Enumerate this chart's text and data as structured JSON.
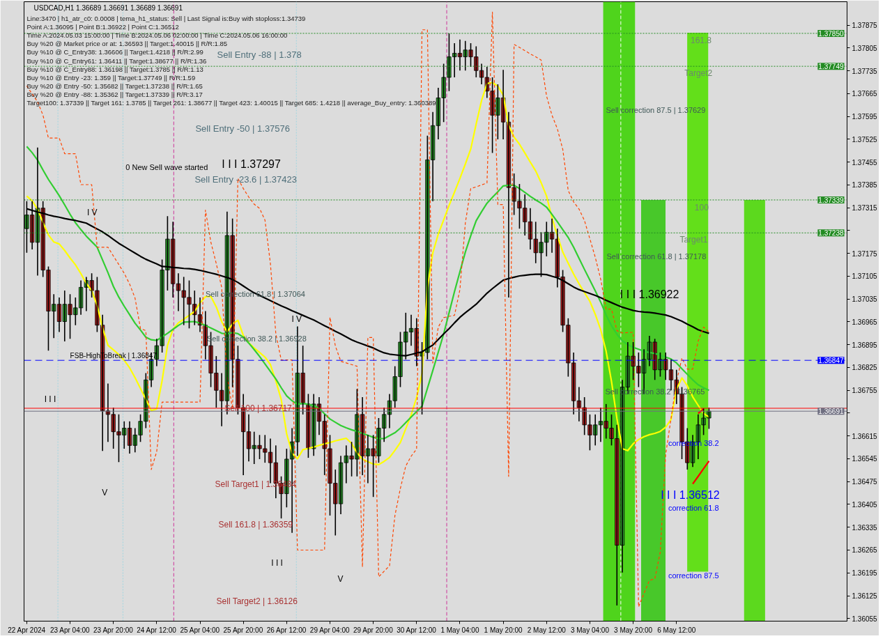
{
  "chart_data": {
    "type": "candlestick",
    "title": "USDCAD,H1  1.36689 1.36691 1.36689 1.36691",
    "annotations": [
      "Line:3470 | h1_atr_c0: 0.0008 | tema_h1_status: Sell | Last Signal is:Buy with stoploss:1.34739",
      "Point A:1.36095 | Point B:1.36922 | Point C:1.36512",
      "Time A:2024.05.03 15:00:00 | Time B:2024.05.06 02:00:00 | Time C:2024.05.06 16:00:00",
      "Buy %20 @ Market price or at: 1.36593 || Target:1.40015 || R/R:1.85",
      "Buy %10 @ C_Entry38: 1.36606 || Target:1.4218 || R/R:2.99",
      "Buy %10 @ C_Entry61: 1.36411 || Target:1.38677 || R/R:1.36",
      "Buy %10 @ C_Entry88: 1.36198 || Target:1.3785 || R/R:1.13",
      "Buy %10 @ Entry -23: 1.359 || Target:1.37749 || R/R:1.59",
      "Buy %20 @ Entry -50: 1.35682 || Target:1.37238 || R/R:1.65",
      "Buy %20 @ Entry -88: 1.35362 || Target:1.37339 || R/R:3.17",
      "Target100: 1.37339 || Target 161: 1.3785 || Target 261: 1.38677 || Target 423: 1.40015 || Target 685: 1.4218 || average_Buy_entry: 1.360389",
      "Sell Entry -88 | 1.378",
      "Sell Entry -50 | 1.37576",
      "0 New Sell wave started",
      "I I I 1.37297",
      "Sell Entry -23.6 | 1.37423",
      "Sell correction 61.8 | 1.37064",
      "Sell correction 38.2 | 1.36928",
      "FSB-HighToBreak | 1.36847",
      "Sell 100 | 1.36717",
      "Sell Target1 | 1.36484",
      "Sell 161.8 | 1.36359",
      "Sell Target2 | 1.36126",
      "161.8",
      "Target2",
      "100",
      "Target1",
      "Sell correction 87.5 | 1.37629",
      "Sell correction 61.8 | 1.37178",
      "I I I 1.36922",
      "Sell correction 38.2 | 1.36765",
      "correction 38.2",
      "I I I 1.36512",
      "correction 61.8",
      "correction 87.5",
      "I I I",
      "I I I",
      "V",
      "V",
      "I V",
      "I V"
    ],
    "categories": [
      "22 Apr 2024",
      null,
      null,
      null,
      null,
      null,
      null,
      null,
      "23 Apr 04:00",
      null,
      null,
      null,
      null,
      null,
      null,
      null,
      "23 Apr 20:00",
      null,
      null,
      null,
      null,
      null,
      null,
      null,
      "24 Apr 12:00",
      null,
      null,
      null,
      null,
      null,
      null,
      null,
      "25 Apr 04:00",
      null,
      null,
      null,
      null,
      null,
      null,
      null,
      "25 Apr 20:00",
      null,
      null,
      null,
      null,
      null,
      null,
      null,
      "26 Apr 12:00",
      null,
      null,
      null,
      null,
      null,
      null,
      null,
      "29 Apr 04:00",
      null,
      null,
      null,
      null,
      null,
      null,
      null,
      "29 Apr 20:00",
      null,
      null,
      null,
      null,
      null,
      null,
      null,
      "30 Apr 12:00",
      null,
      null,
      null,
      null,
      null,
      null,
      null,
      "1 May 04:00",
      null,
      null,
      null,
      null,
      null,
      null,
      null,
      "1 May 20:00",
      null,
      null,
      null,
      null,
      null,
      null,
      null,
      "2 May 12:00",
      null,
      null,
      null,
      null,
      null,
      null,
      null,
      "3 May 04:00",
      null,
      null,
      null,
      null,
      null,
      null,
      null,
      "3 May 20:00",
      null,
      null,
      null,
      null,
      null,
      null,
      null,
      "6 May 12:00",
      null,
      null,
      null,
      null,
      null,
      null,
      null,
      null,
      null,
      null,
      null,
      null,
      null,
      null,
      null,
      null,
      null,
      null,
      null,
      null,
      null,
      null,
      null,
      null,
      null,
      null,
      null,
      null,
      null,
      null,
      null
    ],
    "ohlc": [
      [
        1.37251,
        1.37335,
        1.37177,
        1.37293
      ],
      [
        1.37293,
        1.37335,
        1.37187,
        1.37209
      ],
      [
        1.37209,
        1.375,
        1.37107,
        1.37314
      ],
      [
        1.37314,
        1.37335,
        1.37103,
        1.37124
      ],
      [
        1.37124,
        1.37135,
        1.36877,
        1.36998
      ],
      [
        1.36998,
        1.3705,
        1.36915,
        1.37019
      ],
      [
        1.37019,
        1.3704,
        1.36934,
        1.36966
      ],
      [
        1.36966,
        1.37061,
        1.36905,
        1.37019
      ],
      [
        1.37019,
        1.3705,
        1.36913,
        1.36987
      ],
      [
        1.36987,
        1.3704,
        1.36955,
        1.37008
      ],
      [
        1.37008,
        1.37092,
        1.36987,
        1.37071
      ],
      [
        1.37071,
        1.37103,
        1.36998,
        1.37092
      ],
      [
        1.37092,
        1.37114,
        1.3704,
        1.37061
      ],
      [
        1.37061,
        1.37103,
        1.36934,
        1.36955
      ],
      [
        1.36955,
        1.36987,
        1.36569,
        1.36692
      ],
      [
        1.36692,
        1.36776,
        1.36597,
        1.36681
      ],
      [
        1.36681,
        1.36702,
        1.36576,
        1.36628
      ],
      [
        1.36628,
        1.36681,
        1.36535,
        1.36618
      ],
      [
        1.36618,
        1.3666,
        1.36576,
        1.36639
      ],
      [
        1.36639,
        1.3666,
        1.36561,
        1.36586
      ],
      [
        1.36586,
        1.36639,
        1.36565,
        1.36618
      ],
      [
        1.36618,
        1.36681,
        1.36597,
        1.3666
      ],
      [
        1.3666,
        1.36808,
        1.36639,
        1.36787
      ],
      [
        1.36787,
        1.36871,
        1.36765,
        1.3685
      ],
      [
        1.3685,
        1.36913,
        1.36829,
        1.36892
      ],
      [
        1.36892,
        1.37156,
        1.36871,
        1.37124
      ],
      [
        1.37124,
        1.37289,
        1.37061,
        1.37219
      ],
      [
        1.37219,
        1.37272,
        1.3704,
        1.37082
      ],
      [
        1.37082,
        1.37114,
        1.36998,
        1.37061
      ],
      [
        1.37061,
        1.37103,
        1.36955,
        1.3704
      ],
      [
        1.3704,
        1.37092,
        1.36945,
        1.37019
      ],
      [
        1.37019,
        1.37061,
        1.36955,
        1.36987
      ],
      [
        1.36987,
        1.3704,
        1.36934,
        1.36955
      ],
      [
        1.36955,
        1.36998,
        1.3685,
        1.36892
      ],
      [
        1.36892,
        1.36934,
        1.36765,
        1.36808
      ],
      [
        1.36808,
        1.3686,
        1.36702,
        1.36755
      ],
      [
        1.36755,
        1.36808,
        1.36645,
        1.36723
      ],
      [
        1.36723,
        1.37303,
        1.36681,
        1.3723
      ],
      [
        1.3723,
        1.37282,
        1.36765,
        1.3685
      ],
      [
        1.3685,
        1.36892,
        1.36681,
        1.36702
      ],
      [
        1.36702,
        1.36744,
        1.36495,
        1.36628
      ],
      [
        1.36628,
        1.36681,
        1.36537,
        1.36576
      ],
      [
        1.36576,
        1.36628,
        1.36529,
        1.36586
      ],
      [
        1.36586,
        1.36618,
        1.36544,
        1.36576
      ],
      [
        1.36576,
        1.36618,
        1.36533,
        1.36565
      ],
      [
        1.36565,
        1.36607,
        1.3647,
        1.36533
      ],
      [
        1.36533,
        1.36586,
        1.36424,
        1.3647
      ],
      [
        1.3647,
        1.36491,
        1.36362,
        1.36438
      ],
      [
        1.36438,
        1.36576,
        1.36396,
        1.36544
      ],
      [
        1.36544,
        1.36639,
        1.36318,
        1.36597
      ],
      [
        1.36597,
        1.36951,
        1.36554,
        1.36808
      ],
      [
        1.36808,
        1.36892,
        1.36681,
        1.36713
      ],
      [
        1.36713,
        1.36744,
        1.36548,
        1.36576
      ],
      [
        1.36576,
        1.36744,
        1.36554,
        1.36713
      ],
      [
        1.36713,
        1.36734,
        1.36618,
        1.3666
      ],
      [
        1.3666,
        1.36681,
        1.36495,
        1.36576
      ],
      [
        1.36576,
        1.36618,
        1.36371,
        1.3647
      ],
      [
        1.3647,
        1.36512,
        1.3631,
        1.36407
      ],
      [
        1.36407,
        1.36554,
        1.36375,
        1.36533
      ],
      [
        1.36533,
        1.36586,
        1.3647,
        1.36554
      ],
      [
        1.36554,
        1.36597,
        1.36491,
        1.36544
      ],
      [
        1.36544,
        1.36759,
        1.36491,
        1.36681
      ],
      [
        1.36681,
        1.36734,
        1.36495,
        1.36554
      ],
      [
        1.36554,
        1.36618,
        1.3647,
        1.36576
      ],
      [
        1.36576,
        1.36618,
        1.36428,
        1.36554
      ],
      [
        1.36554,
        1.3667,
        1.36533,
        1.36639
      ],
      [
        1.36639,
        1.36702,
        1.36597,
        1.36681
      ],
      [
        1.36681,
        1.36744,
        1.36639,
        1.36723
      ],
      [
        1.36723,
        1.36829,
        1.36702,
        1.36797
      ],
      [
        1.36797,
        1.36934,
        1.36765,
        1.36903
      ],
      [
        1.36903,
        1.36993,
        1.3685,
        1.36934
      ],
      [
        1.36934,
        1.36987,
        1.36892,
        1.36945
      ],
      [
        1.36945,
        1.36976,
        1.36829,
        1.3686
      ],
      [
        1.3686,
        1.36903,
        1.36681,
        1.36871
      ],
      [
        1.36871,
        1.37536,
        1.3685,
        1.37462
      ],
      [
        1.37462,
        1.37609,
        1.37335,
        1.37567
      ],
      [
        1.37567,
        1.37683,
        1.37525,
        1.37652
      ],
      [
        1.37652,
        1.37757,
        1.37578,
        1.37715
      ],
      [
        1.37715,
        1.3785,
        1.37673,
        1.37778
      ],
      [
        1.37778,
        1.3782,
        1.37715,
        1.37789
      ],
      [
        1.37789,
        1.37831,
        1.37736,
        1.37778
      ],
      [
        1.37778,
        1.37827,
        1.37736,
        1.37799
      ],
      [
        1.37799,
        1.3782,
        1.37747,
        1.37778
      ],
      [
        1.37778,
        1.3781,
        1.37715,
        1.37736
      ],
      [
        1.37736,
        1.37757,
        1.37694,
        1.37715
      ],
      [
        1.37715,
        1.37747,
        1.37652,
        1.37673
      ],
      [
        1.37673,
        1.37715,
        1.37483,
        1.37599
      ],
      [
        1.37599,
        1.37694,
        1.37525,
        1.37652
      ],
      [
        1.37652,
        1.37738,
        1.37525,
        1.37578
      ],
      [
        1.37578,
        1.37609,
        1.3704,
        1.37377
      ],
      [
        1.37377,
        1.3742,
        1.37293,
        1.37335
      ],
      [
        1.37335,
        1.37388,
        1.37251,
        1.37314
      ],
      [
        1.37314,
        1.37356,
        1.3723,
        1.37272
      ],
      [
        1.37272,
        1.37314,
        1.37187,
        1.37219
      ],
      [
        1.37219,
        1.37272,
        1.37145,
        1.37177
      ],
      [
        1.37177,
        1.3724,
        1.37103,
        1.37209
      ],
      [
        1.37209,
        1.37272,
        1.37166,
        1.3724
      ],
      [
        1.3724,
        1.37282,
        1.37177,
        1.37219
      ],
      [
        1.37219,
        1.37251,
        1.37071,
        1.37103
      ],
      [
        1.37103,
        1.37124,
        1.36934,
        1.36955
      ],
      [
        1.36955,
        1.36976,
        1.36797,
        1.36839
      ],
      [
        1.36839,
        1.36871,
        1.36681,
        1.36723
      ],
      [
        1.36723,
        1.36765,
        1.3666,
        1.36702
      ],
      [
        1.36702,
        1.36734,
        1.36618,
        1.36649
      ],
      [
        1.36649,
        1.36681,
        1.36571,
        1.36618
      ],
      [
        1.36618,
        1.36681,
        1.36586,
        1.36649
      ],
      [
        1.36649,
        1.36702,
        1.36597,
        1.3666
      ],
      [
        1.3666,
        1.36713,
        1.36607,
        1.36639
      ],
      [
        1.36639,
        1.36681,
        1.36586,
        1.36607
      ],
      [
        1.36607,
        1.36649,
        1.36095,
        1.3628
      ],
      [
        1.3628,
        1.36787,
        1.36196,
        1.36765
      ],
      [
        1.36765,
        1.36903,
        1.36744,
        1.3686
      ],
      [
        1.3686,
        1.36903,
        1.36787,
        1.36829
      ],
      [
        1.36829,
        1.36871,
        1.36765,
        1.36808
      ],
      [
        1.36808,
        1.36881,
        1.36744,
        1.3685
      ],
      [
        1.3685,
        1.36922,
        1.36829,
        1.36903
      ],
      [
        1.36903,
        1.36913,
        1.36787,
        1.36818
      ],
      [
        1.36818,
        1.36871,
        1.36797,
        1.3685
      ],
      [
        1.3685,
        1.36871,
        1.36787,
        1.36818
      ],
      [
        1.36818,
        1.3685,
        1.36755,
        1.36787
      ],
      [
        1.36787,
        1.36818,
        1.36713,
        1.36744
      ],
      [
        1.36744,
        1.36765,
        1.36544,
        1.36597
      ],
      [
        1.36597,
        1.36639,
        1.36512,
        1.36533
      ],
      [
        1.36533,
        1.36618,
        1.3652,
        1.36597
      ],
      [
        1.36597,
        1.36681,
        1.36544,
        1.36649
      ],
      [
        1.36649,
        1.367,
        1.36618,
        1.3667
      ],
      [
        1.3667,
        1.36702,
        1.36637,
        1.36691
      ],
      null,
      null,
      null,
      null,
      null,
      null,
      null,
      null,
      null,
      null,
      null,
      null,
      null,
      null,
      null,
      null,
      null,
      null,
      null,
      null,
      null,
      null,
      null,
      null,
      null
    ],
    "colors": [
      "#2ca02c",
      "#b22222",
      "#2ca02c",
      "#b22222",
      "#b22222",
      "#2ca02c",
      "#b22222",
      "#2ca02c",
      "#b22222",
      "#2ca02c",
      "#2ca02c",
      "#2ca02c",
      "#b22222",
      "#b22222",
      "#b22222",
      "#b22222",
      "#b22222",
      "#b22222",
      "#2ca02c",
      "#b22222",
      "#2ca02c",
      "#2ca02c",
      "#2ca02c",
      "#2ca02c",
      "#2ca02c",
      "#2ca02c",
      "#2ca02c",
      "#b22222",
      "#b22222",
      "#b22222",
      "#b22222",
      "#b22222",
      "#b22222",
      "#b22222",
      "#b22222",
      "#b22222",
      "#b22222",
      "#2ca02c",
      "#b22222",
      "#b22222",
      "#b22222",
      "#b22222",
      "#2ca02c",
      "#b22222",
      "#b22222",
      "#b22222",
      "#b22222",
      "#b22222",
      "#2ca02c",
      "#2ca02c",
      "#2ca02c",
      "#b22222",
      "#b22222",
      "#2ca02c",
      "#b22222",
      "#b22222",
      "#b22222",
      "#b22222",
      "#2ca02c",
      "#2ca02c",
      "#b22222",
      "#2ca02c",
      "#b22222",
      "#2ca02c",
      "#b22222",
      "#2ca02c",
      "#2ca02c",
      "#2ca02c",
      "#2ca02c",
      "#2ca02c",
      "#2ca02c",
      "#2ca02c",
      "#b22222",
      "#2ca02c",
      "#2ca02c",
      "#2ca02c",
      "#2ca02c",
      "#2ca02c",
      "#2ca02c",
      "#2ca02c",
      "#b22222",
      "#2ca02c",
      "#b22222",
      "#b22222",
      "#b22222",
      "#b22222",
      "#b22222",
      "#2ca02c",
      "#b22222",
      "#b22222",
      "#b22222",
      "#b22222",
      "#b22222",
      "#b22222",
      "#b22222",
      "#2ca02c",
      "#2ca02c",
      "#b22222",
      "#b22222",
      "#b22222",
      "#b22222",
      "#b22222",
      "#b22222",
      "#b22222",
      "#b22222",
      "#2ca02c",
      "#2ca02c",
      "#b22222",
      "#b22222",
      "#b22222",
      "#2ca02c",
      "#2ca02c",
      "#b22222",
      "#b22222",
      "#2ca02c",
      "#2ca02c",
      "#b22222",
      "#2ca02c",
      "#b22222",
      "#b22222",
      "#b22222",
      "#b22222",
      "#b22222",
      "#2ca02c",
      "#2ca02c",
      "#2ca02c",
      "#2ca02c",
      null,
      null,
      null,
      null,
      null,
      null,
      null,
      null,
      null,
      null,
      null,
      null,
      null,
      null,
      null,
      null,
      null,
      null,
      null,
      null,
      null,
      null,
      null,
      null,
      null
    ],
    "series": [
      {
        "type": "line",
        "color": "#ffff00",
        "values": [
          1.37351,
          1.37336,
          1.37311,
          1.3727,
          1.37232,
          1.3721,
          1.37204,
          1.37184,
          1.37161,
          1.3714,
          1.37113,
          1.37083,
          1.37061,
          1.37015,
          1.36947,
          1.36893,
          1.36879,
          1.36865,
          1.36847,
          1.36824,
          1.36794,
          1.36761,
          1.36727,
          1.36693,
          1.36698,
          1.36785,
          1.36893,
          1.36942,
          1.36962,
          1.36973,
          1.36985,
          1.36997,
          1.37023,
          1.37042,
          1.37043,
          1.37011,
          1.36966,
          1.36934,
          1.36959,
          1.3697,
          1.36923,
          1.36901,
          1.36885,
          1.36871,
          1.36857,
          1.36834,
          1.36784,
          1.36727,
          1.36622,
          1.36562,
          1.36545,
          1.36573,
          1.36577,
          1.36581,
          1.36586,
          1.36591,
          1.36595,
          1.366,
          1.36604,
          1.36608,
          1.36592,
          1.36563,
          1.36544,
          1.36536,
          1.36529,
          1.36527,
          1.36537,
          1.36549,
          1.36571,
          1.36595,
          1.36637,
          1.3668,
          1.36733,
          1.36806,
          1.3707,
          1.37177,
          1.37234,
          1.37278,
          1.37322,
          1.37363,
          1.37405,
          1.37449,
          1.37495,
          1.37572,
          1.37644,
          1.37696,
          1.37699,
          1.37688,
          1.37661,
          1.37568,
          1.37532,
          1.3751,
          1.37483,
          1.37455,
          1.37428,
          1.37392,
          1.37351,
          1.37285,
          1.37229,
          1.37179,
          1.37145,
          1.37112,
          1.37082,
          1.37055,
          1.37028,
          1.36988,
          1.36941,
          1.36875,
          1.36782,
          1.36668,
          1.36576,
          1.3657,
          1.36591,
          1.36604,
          1.36613,
          1.36619,
          1.36623,
          1.36629,
          1.36642,
          1.36666,
          1.36759,
          1.36793,
          1.36769,
          1.36735,
          1.36709,
          1.36684,
          1.36673,
          null,
          null,
          null,
          null,
          null,
          null,
          null,
          null,
          null,
          null,
          null,
          null,
          null,
          null,
          null,
          null,
          null,
          null,
          null,
          null,
          null,
          null,
          null,
          null,
          null
        ]
      },
      {
        "type": "line",
        "color": "#32cd32",
        "values": [
          1.37503,
          1.37484,
          1.37461,
          1.37431,
          1.37402,
          1.37377,
          1.37352,
          1.37324,
          1.37295,
          1.37269,
          1.37248,
          1.37228,
          1.37211,
          1.37194,
          1.37155,
          1.37116,
          1.37074,
          1.37041,
          1.37013,
          1.36987,
          1.36961,
          1.3694,
          1.36918,
          1.3691,
          1.36908,
          1.36919,
          1.3693,
          1.36942,
          1.36954,
          1.36964,
          1.36965,
          1.36966,
          1.36961,
          1.36954,
          1.36946,
          1.36938,
          1.3693,
          1.36928,
          1.36932,
          1.36929,
          1.36918,
          1.369,
          1.3688,
          1.36859,
          1.36836,
          1.36813,
          1.3679,
          1.36763,
          1.36738,
          1.36723,
          1.36712,
          1.36715,
          1.36712,
          1.36708,
          1.367,
          1.36683,
          1.36667,
          1.36657,
          1.36647,
          1.3664,
          1.36634,
          1.36629,
          1.36623,
          1.36617,
          1.36611,
          1.36607,
          1.36607,
          1.36616,
          1.36625,
          1.36639,
          1.36656,
          1.36673,
          1.3669,
          1.36706,
          1.36761,
          1.36816,
          1.36872,
          1.36928,
          1.36993,
          1.37058,
          1.37119,
          1.37179,
          1.37229,
          1.37275,
          1.37303,
          1.37329,
          1.37347,
          1.37364,
          1.37382,
          1.37384,
          1.37384,
          1.37374,
          1.37362,
          1.3735,
          1.37339,
          1.37329,
          1.37317,
          1.37295,
          1.37272,
          1.37248,
          1.37224,
          1.37194,
          1.3716,
          1.37126,
          1.37093,
          1.3706,
          1.37026,
          1.36986,
          1.36953,
          1.36927,
          1.36907,
          1.36895,
          1.36887,
          1.36881,
          1.36875,
          1.36871,
          1.36868,
          1.36863,
          1.36857,
          1.36851,
          1.36839,
          1.36821,
          1.36804,
          1.36787,
          1.36772,
          1.36763,
          1.36755,
          null,
          null,
          null,
          null,
          null,
          null,
          null,
          null,
          null,
          null,
          null,
          null,
          null,
          null,
          null,
          null,
          null,
          null,
          null,
          null,
          null,
          null,
          null,
          null,
          null
        ]
      },
      {
        "type": "line",
        "color": "#000000",
        "values": [
          1.37312,
          1.37307,
          1.37302,
          1.37298,
          1.37293,
          1.37289,
          1.37286,
          1.37282,
          1.37279,
          1.37276,
          1.37272,
          1.37268,
          1.37259,
          1.3725,
          1.37241,
          1.3723,
          1.37218,
          1.37206,
          1.37196,
          1.37186,
          1.37176,
          1.37166,
          1.37157,
          1.3715,
          1.37143,
          1.37135,
          1.37134,
          1.37132,
          1.37131,
          1.37129,
          1.37128,
          1.37126,
          1.37123,
          1.37119,
          1.37115,
          1.37111,
          1.37106,
          1.37101,
          1.37095,
          1.37086,
          1.37075,
          1.37064,
          1.37054,
          1.37046,
          1.37038,
          1.3703,
          1.37022,
          1.37014,
          1.37007,
          1.36999,
          1.36992,
          1.36985,
          1.36978,
          1.36971,
          1.36962,
          1.36953,
          1.36945,
          1.36936,
          1.36928,
          1.36919,
          1.3691,
          1.36903,
          1.36897,
          1.36891,
          1.36885,
          1.36877,
          1.3687,
          1.36866,
          1.36864,
          1.36862,
          1.36861,
          1.36865,
          1.36869,
          1.36873,
          1.36884,
          1.36894,
          1.36911,
          1.36928,
          1.36944,
          1.36962,
          1.36979,
          1.36993,
          1.37006,
          1.37019,
          1.37036,
          1.37053,
          1.37067,
          1.3708,
          1.37093,
          1.37098,
          1.37102,
          1.37106,
          1.37108,
          1.3711,
          1.37111,
          1.37111,
          1.3711,
          1.37105,
          1.371,
          1.37092,
          1.37082,
          1.37072,
          1.37064,
          1.37058,
          1.37052,
          1.37046,
          1.37039,
          1.37031,
          1.37024,
          1.37017,
          1.3701,
          1.37005,
          1.37,
          1.36997,
          1.36995,
          1.36994,
          1.36992,
          1.36989,
          1.36986,
          1.36981,
          1.36974,
          1.36967,
          1.36958,
          1.3695,
          1.36941,
          1.36935,
          1.3693,
          null,
          null,
          null,
          null,
          null,
          null,
          null,
          null,
          null,
          null,
          null,
          null,
          null,
          null,
          null,
          null,
          null,
          null,
          null,
          null,
          null,
          null,
          null,
          null,
          null
        ]
      },
      {
        "type": "line",
        "color": "#ff4500",
        "line_style": "dashed",
        "values": [
          1.37689,
          1.37664,
          1.3764,
          1.37599,
          1.37529,
          1.37529,
          1.37529,
          1.37481,
          1.37481,
          1.37481,
          1.37386,
          1.37386,
          1.37386,
          1.37194,
          1.37194,
          1.37194,
          1.37167,
          1.37141,
          1.37114,
          1.37081,
          1.37038,
          1.36945,
          1.36938,
          1.36512,
          1.36567,
          1.36719,
          1.36719,
          1.36719,
          1.36719,
          1.36719,
          1.36719,
          1.36719,
          1.36719,
          1.37308,
          1.3721,
          1.37144,
          1.37071,
          1.36799,
          1.36698,
          1.37405,
          1.37374,
          1.37348,
          1.37326,
          1.37313,
          1.37277,
          1.37144,
          1.36929,
          1.36848,
          1.36848,
          1.36848,
          1.36265,
          1.36265,
          1.36265,
          1.36265,
          1.36265,
          1.36265,
          1.36979,
          1.36891,
          1.36844,
          1.36839,
          1.36834,
          1.36829,
          1.36213,
          1.36917,
          1.36917,
          1.36183,
          1.362,
          1.36217,
          1.36371,
          1.36454,
          1.36523,
          1.36553,
          1.36575,
          1.37861,
          1.37861,
          1.36839,
          1.36949,
          1.36978,
          1.36982,
          1.36985,
          1.37064,
          1.37268,
          1.37374,
          1.37379,
          1.37385,
          1.37391,
          1.37915,
          1.37325,
          1.37325,
          1.36491,
          1.37816,
          1.37807,
          1.37797,
          1.37787,
          1.37778,
          1.37768,
          1.37658,
          1.37599,
          1.37557,
          1.37494,
          1.37368,
          1.37333,
          1.37311,
          1.37276,
          1.3722,
          1.37163,
          1.37096,
          1.37004,
          1.37004,
          1.36938,
          1.36931,
          1.36932,
          1.36933,
          1.36091,
          1.36132,
          1.36172,
          1.36177,
          1.36259,
          1.36558,
          1.3667,
          1.36782,
          1.36854,
          1.3682,
          1.3682,
          1.36906,
          1.36949,
          1.36934,
          null,
          null,
          null,
          null,
          null,
          null,
          null,
          null,
          null,
          null,
          null,
          null,
          null,
          null,
          null,
          null,
          null,
          null,
          null,
          null,
          null,
          null,
          null,
          null,
          null
        ]
      },
      {
        "type": "line",
        "color": "#ff0000",
        "values": [
          null,
          null,
          null,
          null,
          null,
          null,
          null,
          null,
          null,
          null,
          null,
          null,
          null,
          null,
          null,
          null,
          null,
          null,
          null,
          null,
          null,
          null,
          null,
          null,
          null,
          null,
          null,
          null,
          null,
          null,
          null,
          null,
          null,
          null,
          null,
          null,
          null,
          null,
          null,
          null,
          null,
          null,
          null,
          null,
          null,
          null,
          null,
          null,
          null,
          null,
          null,
          null,
          null,
          null,
          null,
          null,
          null,
          null,
          null,
          null,
          null,
          null,
          null,
          null,
          null,
          null,
          null,
          null,
          null,
          null,
          null,
          null,
          null,
          null,
          null,
          null,
          null,
          null,
          null,
          null,
          null,
          null,
          null,
          null,
          null,
          null,
          null,
          null,
          null,
          null,
          null,
          null,
          null,
          null,
          null,
          null,
          null,
          null,
          null,
          null,
          null,
          null,
          null,
          null,
          null,
          null,
          null,
          null,
          null,
          null,
          null,
          null,
          null,
          null,
          null,
          null,
          null,
          null,
          null,
          null,
          null,
          null,
          null,
          1.36468,
          1.36491,
          1.36515,
          1.36538,
          null,
          null,
          null,
          null,
          null,
          null,
          null,
          null,
          null,
          null,
          null,
          null,
          null,
          null,
          null,
          null,
          null,
          null,
          null,
          null,
          null,
          null,
          null,
          null,
          null
        ]
      },
      {
        "type": "line",
        "color": "#ff0000",
        "values": [
          null,
          null,
          null,
          null,
          null,
          null,
          null,
          null,
          null,
          null,
          null,
          null,
          null,
          null,
          null,
          null,
          null,
          null,
          null,
          null,
          null,
          null,
          null,
          null,
          null,
          null,
          null,
          null,
          null,
          null,
          null,
          null,
          null,
          null,
          null,
          null,
          null,
          null,
          null,
          null,
          null,
          null,
          null,
          null,
          null,
          null,
          null,
          null,
          null,
          null,
          null,
          null,
          null,
          null,
          null,
          null,
          null,
          null,
          null,
          null,
          null,
          null,
          null,
          null,
          null,
          null,
          null,
          null,
          null,
          null,
          null,
          null,
          null,
          null,
          null,
          null,
          null,
          null,
          null,
          null,
          null,
          null,
          null,
          null,
          null,
          null,
          null,
          null,
          null,
          null,
          null,
          null,
          null,
          null,
          null,
          null,
          null,
          null,
          null,
          null,
          null,
          null,
          null,
          null,
          null,
          null,
          null,
          null,
          null,
          null,
          null,
          null,
          null,
          null,
          null,
          null,
          null,
          null,
          null,
          null,
          null,
          null,
          null,
          null,
          1.36684,
          1.36698,
          null,
          null,
          null,
          null,
          null,
          null,
          null,
          null,
          null,
          null,
          null,
          null,
          null,
          null,
          null,
          null,
          null,
          null,
          null,
          null,
          null,
          null,
          null,
          null,
          null,
          null
        ]
      }
    ],
    "ylim": [
      1.36047,
      1.37947
    ],
    "yticks": [
      1.36055,
      1.36125,
      1.36195,
      1.36265,
      1.36335,
      1.36405,
      1.36475,
      1.36545,
      1.36615,
      {
        "value": 1.36685,
        "label": null
      },
      1.36755,
      1.36825,
      1.36895,
      1.36965,
      1.37035,
      1.37105,
      1.37175,
      {
        "value": 1.37245,
        "label": null
      },
      1.37315,
      1.37385,
      1.37455,
      1.37525,
      1.37595,
      1.37665,
      1.37735,
      1.37805,
      1.37875
    ],
    "ref_lines": [
      {
        "axis": "y",
        "value": 1.3785,
        "label": "1.37850",
        "color": "#228b22",
        "line_style": "dotted"
      },
      {
        "axis": "y",
        "value": 1.37749,
        "label": "1.37749",
        "color": "#228b22",
        "line_style": "dotted"
      },
      {
        "axis": "y",
        "value": 1.37339,
        "label": "1.37339",
        "color": "#228b22",
        "line_style": "dotted"
      },
      {
        "axis": "y",
        "value": 1.37238,
        "label": "1.37238",
        "color": "#228b22",
        "line_style": "dotted"
      },
      {
        "axis": "y",
        "value": 1.36847,
        "label": "1.36847",
        "color": "#0000ff",
        "line_style": "dashed"
      },
      {
        "axis": "y",
        "value": 1.367,
        "color": "#ff0000",
        "line_style": "solid"
      },
      {
        "axis": "y",
        "value": 1.36691,
        "label": "1.36691",
        "color": "#6e6e80",
        "line_style": "solid"
      }
    ]
  }
}
